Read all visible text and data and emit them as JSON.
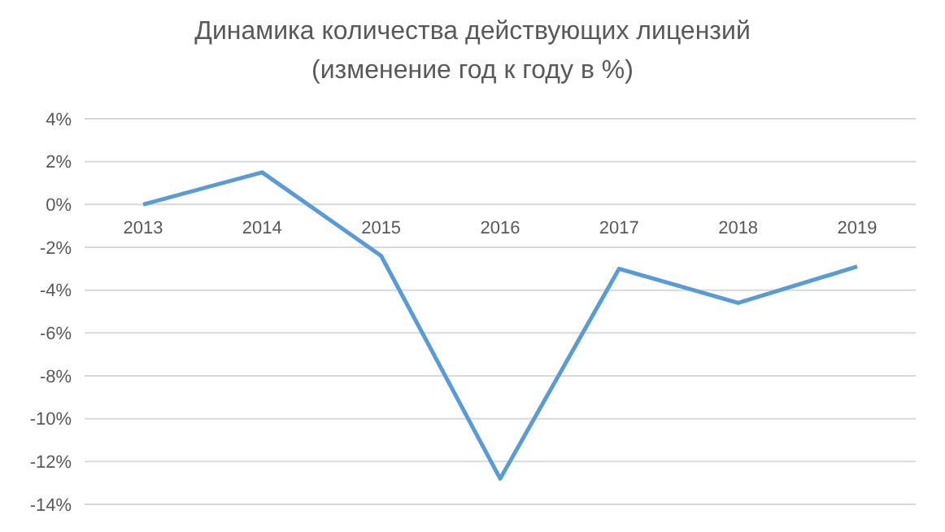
{
  "chart_data": {
    "type": "line",
    "title": "Динамика количества действующих лицензий",
    "subtitle": "(изменение год к году в %)",
    "categories": [
      "2013",
      "2014",
      "2015",
      "2016",
      "2017",
      "2018",
      "2019"
    ],
    "series": [
      {
        "color": "#5b9bd5",
        "values": [
          0,
          1.5,
          -2.4,
          -12.8,
          -3.0,
          -4.6,
          -2.9
        ]
      }
    ],
    "ylim": [
      -14,
      4
    ],
    "yticks": [
      {
        "value": -14,
        "label": "-14%"
      },
      {
        "value": -12,
        "label": "-12%"
      },
      {
        "value": -10,
        "label": "-10%"
      },
      {
        "value": -8,
        "label": "-8%"
      },
      {
        "value": -6,
        "label": "-6%"
      },
      {
        "value": -4,
        "label": "-4%"
      },
      {
        "value": -2,
        "label": "-2%"
      },
      {
        "value": 0,
        "label": "0%"
      },
      {
        "value": 2,
        "label": "2%"
      },
      {
        "value": 4,
        "label": "4%"
      }
    ],
    "grid": "y",
    "marker": "none",
    "line_style": "solid"
  }
}
